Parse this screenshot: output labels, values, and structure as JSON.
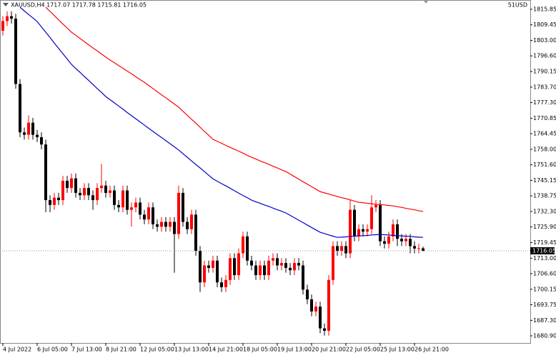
{
  "chart_data": {
    "type": "candlestick",
    "title": "XAUUSD,H4  1717.07 1717.78 1715.81 1716.05",
    "annotation": "51USD",
    "last_price": 1716.05,
    "up_color": "#ff0000",
    "down_color": "#000000",
    "ylim": [
      1677.95,
      1819.7
    ],
    "yticks": [
      1815.85,
      1809.45,
      {
        "value": 1803,
        "label": "1803.00"
      },
      {
        "value": 1796.6,
        "label": "1796.60"
      },
      1790.15,
      {
        "value": 1783.7,
        "label": "1783.70"
      },
      {
        "value": 1777.3,
        "label": "1777.30"
      },
      1770.85,
      1764.45,
      {
        "value": 1758,
        "label": "1758.00"
      },
      {
        "value": 1751.6,
        "label": "1751.60"
      },
      1745.15,
      1738.75,
      {
        "value": 1732.3,
        "label": "1732.30"
      },
      {
        "value": 1725.9,
        "label": "1725.90"
      },
      1719.45,
      {
        "value": 1713,
        "label": "1713.00"
      },
      {
        "value": 1706.6,
        "label": "1706.60"
      },
      1700.15,
      1693.75,
      {
        "value": 1687.3,
        "label": "1687.30"
      },
      {
        "value": 1680.9,
        "label": "1680.90"
      }
    ],
    "categories": [
      "4 Jul 2022",
      null,
      null,
      null,
      null,
      null,
      null,
      null,
      "6 Jul 05:00",
      null,
      null,
      null,
      null,
      null,
      null,
      null,
      "7 Jul 13:00",
      null,
      null,
      null,
      null,
      null,
      null,
      null,
      "8 Jul 21:00",
      null,
      null,
      null,
      null,
      null,
      null,
      null,
      "12 Jul 05:00",
      null,
      null,
      null,
      null,
      null,
      null,
      null,
      "13 Jul 13:00",
      null,
      null,
      null,
      null,
      null,
      null,
      null,
      "14 Jul 21:00",
      null,
      null,
      null,
      null,
      null,
      null,
      null,
      "18 Jul 05:00",
      null,
      null,
      null,
      null,
      null,
      null,
      null,
      "19 Jul 13:00",
      null,
      null,
      null,
      null,
      null,
      null,
      null,
      "20 Jul 21:00",
      null,
      null,
      null,
      null,
      null,
      null,
      null,
      "22 Jul 05:00",
      null,
      null,
      null,
      null,
      null,
      null,
      null,
      "25 Jul 13:00",
      null,
      null,
      null,
      null,
      null,
      null,
      null,
      "26 Jul 21:00",
      null,
      null
    ],
    "candles": {
      "open": [
        1807,
        1811,
        1813,
        1812,
        1785,
        1765,
        1764,
        1769,
        1764,
        1763,
        1760,
        1737,
        1735,
        1738,
        1737,
        1745,
        1742,
        1746,
        1740,
        1739,
        1742,
        1739,
        1737,
        1742,
        1743,
        1740,
        1741,
        1735,
        1734,
        1741,
        1733,
        1734,
        1736,
        1731,
        1729,
        1734,
        1727,
        1726,
        1728,
        1726,
        1728,
        1723,
        1740,
        1728,
        1725,
        1731,
        1716,
        1703,
        1710,
        1709,
        1712,
        1703,
        1701,
        1704,
        1713,
        1706,
        1715,
        1722,
        1712,
        1710,
        1706,
        1710,
        1706,
        1712,
        1713,
        1710,
        1711,
        1709,
        1708,
        1711,
        1710,
        1700,
        1696,
        1691,
        1693,
        1684,
        1683,
        1704,
        1718,
        1716,
        1718,
        1715,
        1733,
        1722,
        1725,
        1724,
        1725,
        1734,
        1735,
        1720,
        1719,
        1722,
        1727,
        1721,
        1720,
        1721,
        1718,
        1717,
        1717.07
      ],
      "high": [
        1813,
        1815,
        1815,
        1814,
        1787,
        1767,
        1772,
        1771,
        1766,
        1765,
        1762,
        1739,
        1740,
        1740,
        1747,
        1747,
        1748,
        1748,
        1742,
        1744,
        1744,
        1741,
        1744,
        1752,
        1745,
        1743,
        1743,
        1737,
        1743,
        1743,
        1736,
        1738,
        1738,
        1733,
        1736,
        1736,
        1729,
        1730,
        1730,
        1730,
        1730,
        1743,
        1742,
        1730,
        1733,
        1733,
        1718,
        1712,
        1712,
        1714,
        1714,
        1705,
        1706,
        1715,
        1715,
        1717,
        1724,
        1724,
        1714,
        1712,
        1712,
        1712,
        1714,
        1715,
        1715,
        1713,
        1713,
        1711,
        1713,
        1713,
        1712,
        1702,
        1698,
        1695,
        1695,
        1686,
        1706,
        1720,
        1720,
        1720,
        1720,
        1737,
        1735,
        1727,
        1727,
        1727,
        1739,
        1737,
        1737,
        1722,
        1724,
        1729,
        1729,
        1723,
        1723,
        1723,
        1720,
        1719,
        1717.78
      ],
      "low": [
        1805,
        1809,
        1810,
        1783,
        1763,
        1762,
        1762,
        1762,
        1761,
        1758,
        1732,
        1732,
        1733,
        1735,
        1735,
        1740,
        1740,
        1738,
        1737,
        1737,
        1737,
        1733,
        1735,
        1740,
        1738,
        1738,
        1733,
        1732,
        1732,
        1731,
        1726,
        1732,
        1729,
        1727,
        1727,
        1725,
        1724,
        1724,
        1724,
        1724,
        1707,
        1721,
        1726,
        1723,
        1723,
        1714,
        1699,
        1701,
        1707,
        1707,
        1701,
        1699,
        1699,
        1702,
        1704,
        1704,
        1713,
        1710,
        1708,
        1704,
        1704,
        1704,
        1704,
        1710,
        1708,
        1708,
        1707,
        1706,
        1706,
        1708,
        1698,
        1694,
        1689,
        1689,
        1682,
        1681,
        1681,
        1702,
        1714,
        1714,
        1713,
        1713,
        1720,
        1720,
        1722,
        1722,
        1723,
        1732,
        1718,
        1717,
        1717,
        1720,
        1718,
        1718,
        1718,
        1715,
        1715,
        1715,
        1715.81
      ],
      "close": [
        1811,
        1813,
        1812,
        1785,
        1765,
        1764,
        1769,
        1764,
        1763,
        1760,
        1737,
        1735,
        1738,
        1737,
        1745,
        1742,
        1746,
        1740,
        1739,
        1742,
        1739,
        1737,
        1742,
        1743,
        1740,
        1741,
        1735,
        1734,
        1741,
        1733,
        1734,
        1736,
        1731,
        1729,
        1734,
        1727,
        1726,
        1728,
        1726,
        1728,
        1723,
        1740,
        1728,
        1725,
        1731,
        1716,
        1703,
        1710,
        1709,
        1712,
        1703,
        1701,
        1704,
        1713,
        1706,
        1715,
        1722,
        1712,
        1710,
        1706,
        1710,
        1706,
        1712,
        1713,
        1710,
        1711,
        1709,
        1708,
        1711,
        1710,
        1700,
        1696,
        1691,
        1693,
        1684,
        1683,
        1704,
        1718,
        1716,
        1718,
        1715,
        1733,
        1722,
        1725,
        1724,
        1725,
        1734,
        1735,
        1720,
        1719,
        1722,
        1727,
        1721,
        1720,
        1721,
        1718,
        1717,
        1717.07,
        1716.05
      ]
    },
    "series": [
      {
        "color": "#ff0000",
        "values": [
          null,
          null,
          null,
          null,
          null,
          null,
          null,
          null,
          null,
          null,
          1816.7,
          1815.0,
          1813.3,
          1811.5,
          1809.8,
          1808.1,
          1806.4,
          1805.1,
          1803.8,
          1802.5,
          1801.2,
          1799.9,
          1798.7,
          1797.4,
          1796.1,
          1794.9,
          1793.8,
          1792.6,
          1791.5,
          1790.3,
          1789.2,
          1788.0,
          1786.8,
          1785.7,
          1784.4,
          1783.1,
          1781.8,
          1780.5,
          1779.3,
          1778.0,
          1776.7,
          1775.4,
          1773.7,
          1772.1,
          1770.4,
          1768.8,
          1767.1,
          1765.4,
          1763.8,
          1762.1,
          1761.3,
          1760.5,
          1759.6,
          1758.8,
          1758.0,
          1757.2,
          1756.4,
          1755.5,
          1754.7,
          1754.0,
          1753.2,
          1752.5,
          1751.8,
          1751.0,
          1750.3,
          1749.5,
          1748.8,
          1747.8,
          1746.7,
          1745.7,
          1744.6,
          1743.6,
          1742.6,
          1741.5,
          1740.5,
          1740.0,
          1739.5,
          1739.0,
          1738.5,
          1738.0,
          1737.6,
          1737.1,
          1736.6,
          1736.1,
          1735.9,
          1735.7,
          1735.5,
          1735.3,
          1735.2,
          1735.0,
          1734.8,
          1734.6,
          1734.3,
          1734.0,
          1733.6,
          1733.3,
          1733.0,
          1732.6,
          1732.3
        ]
      },
      {
        "color": "#0000cc",
        "values": [
          null,
          null,
          null,
          null,
          1816.7,
          1815.2,
          1813.7,
          1812.3,
          1810.8,
          1808.6,
          1806.4,
          1804.2,
          1801.9,
          1799.7,
          1797.5,
          1795.3,
          1793.1,
          1791.4,
          1789.8,
          1788.1,
          1786.5,
          1784.8,
          1783.1,
          1781.5,
          1779.8,
          1778.5,
          1777.2,
          1775.9,
          1774.6,
          1773.2,
          1771.9,
          1770.6,
          1769.3,
          1768.0,
          1766.7,
          1765.4,
          1764.1,
          1762.9,
          1761.6,
          1760.3,
          1759.0,
          1757.7,
          1756.2,
          1754.7,
          1753.2,
          1751.7,
          1750.3,
          1748.8,
          1747.3,
          1745.8,
          1744.8,
          1743.8,
          1742.9,
          1741.9,
          1740.9,
          1739.9,
          1738.9,
          1738.0,
          1737.0,
          1736.3,
          1735.7,
          1735.0,
          1734.4,
          1733.7,
          1733.0,
          1732.4,
          1731.7,
          1730.7,
          1729.7,
          1728.7,
          1727.7,
          1726.7,
          1725.7,
          1724.7,
          1723.7,
          1723.2,
          1722.6,
          1722.1,
          1721.6,
          1721.7,
          1721.8,
          1722.0,
          1722.1,
          1722.2,
          1722.3,
          1722.4,
          1722.6,
          1722.7,
          1722.8,
          1722.7,
          1722.6,
          1722.4,
          1722.3,
          1722.2,
          1722.1,
          1722.0,
          1721.8,
          1721.7,
          1721.6
        ]
      }
    ]
  }
}
